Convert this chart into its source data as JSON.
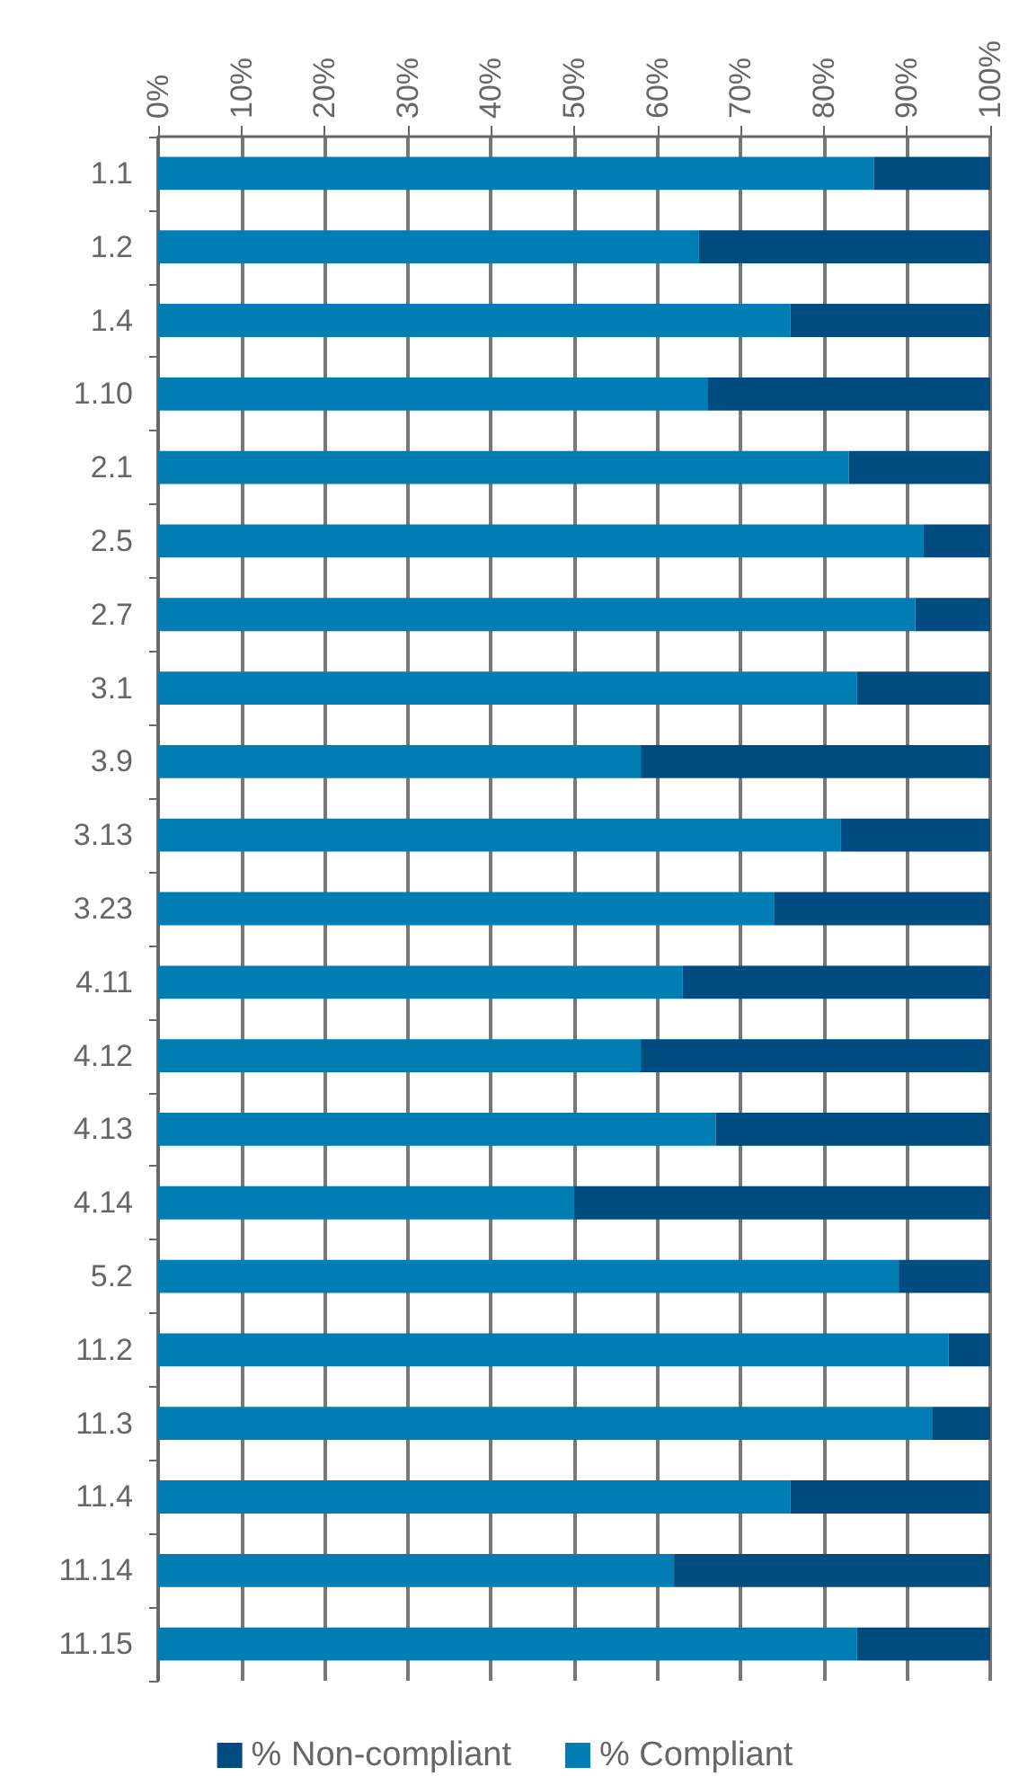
{
  "chart_data": {
    "type": "bar",
    "orientation": "horizontal",
    "stacked": true,
    "categories": [
      "1.1",
      "1.2",
      "1.4",
      "1.10",
      "2.1",
      "2.5",
      "2.7",
      "3.1",
      "3.9",
      "3.13",
      "3.23",
      "4.11",
      "4.12",
      "4.13",
      "4.14",
      "5.2",
      "11.2",
      "11.3",
      "11.4",
      "11.14",
      "11.15"
    ],
    "series": [
      {
        "name": "% Compliant",
        "color": "#007db3",
        "values": [
          86,
          65,
          76,
          66,
          83,
          92,
          91,
          84,
          58,
          82,
          74,
          63,
          58,
          67,
          50,
          89,
          95,
          93,
          76,
          62,
          84
        ]
      },
      {
        "name": "% Non-compliant",
        "color": "#004b80",
        "values": [
          14,
          35,
          24,
          34,
          17,
          8,
          9,
          16,
          42,
          18,
          26,
          37,
          42,
          33,
          50,
          11,
          5,
          7,
          24,
          38,
          16
        ]
      }
    ],
    "xlim": [
      0,
      100
    ],
    "xticks": [
      {
        "value": 0,
        "label": "0%"
      },
      {
        "value": 10,
        "label": "10%"
      },
      {
        "value": 20,
        "label": "20%"
      },
      {
        "value": 30,
        "label": "30%"
      },
      {
        "value": 40,
        "label": "40%"
      },
      {
        "value": 50,
        "label": "50%"
      },
      {
        "value": 60,
        "label": "60%"
      },
      {
        "value": 70,
        "label": "70%"
      },
      {
        "value": 80,
        "label": "80%"
      },
      {
        "value": 90,
        "label": "90%"
      },
      {
        "value": 100,
        "label": "100%"
      }
    ],
    "grid": "x",
    "legend": "bottom"
  }
}
